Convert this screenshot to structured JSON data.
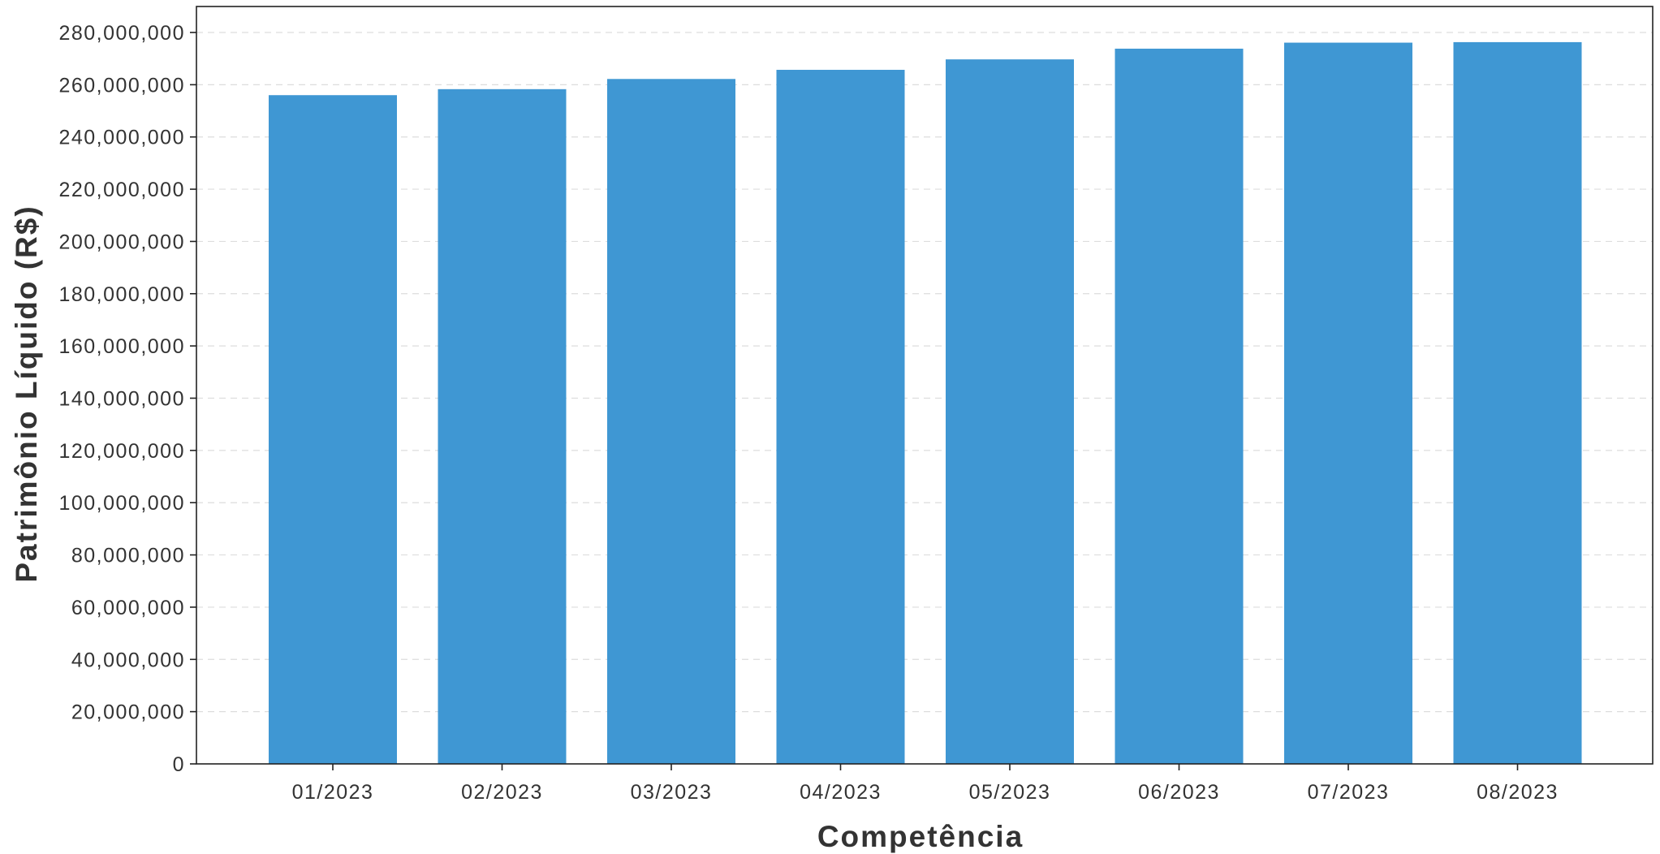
{
  "chart_data": {
    "type": "bar",
    "title": "",
    "xlabel": "Competência",
    "ylabel": "Patrimônio Líquido (R$)",
    "categories": [
      "01/2023",
      "02/2023",
      "03/2023",
      "04/2023",
      "05/2023",
      "06/2023",
      "07/2023",
      "08/2023"
    ],
    "series": [
      {
        "values": [
          256000000,
          258300000,
          262200000,
          265700000,
          269700000,
          273800000,
          276100000,
          276300000
        ]
      }
    ],
    "ylim": [
      0,
      290000000
    ],
    "yticks": [
      0,
      20000000,
      40000000,
      60000000,
      80000000,
      100000000,
      120000000,
      140000000,
      160000000,
      180000000,
      200000000,
      220000000,
      240000000,
      260000000,
      280000000
    ],
    "ytick_labels": [
      "0",
      "20,000,000",
      "40,000,000",
      "60,000,000",
      "80,000,000",
      "100,000,000",
      "120,000,000",
      "140,000,000",
      "160,000,000",
      "180,000,000",
      "200,000,000",
      "220,000,000",
      "240,000,000",
      "260,000,000",
      "280,000,000"
    ],
    "grid": "horizontal dashed",
    "legend": "none",
    "colors": {
      "bar": "#3f97d3",
      "axis": "#222222",
      "grid": "#dddddd",
      "text": "#333333"
    }
  }
}
